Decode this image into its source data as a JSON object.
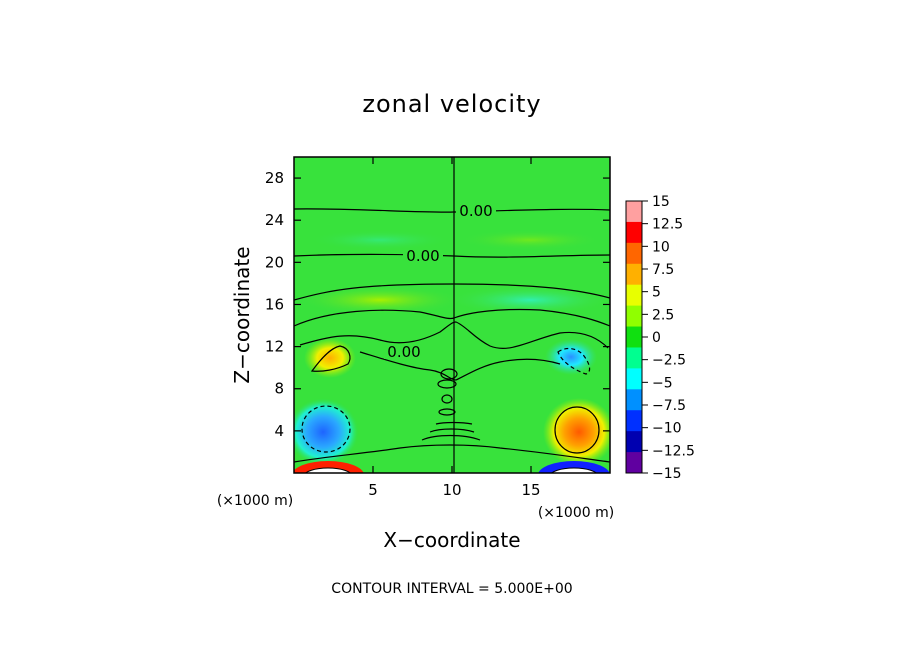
{
  "chart_data": {
    "type": "heatmap",
    "title": "zonal velocity",
    "xlabel": "X−coordinate",
    "ylabel": "Z−coordinate",
    "x_unit_left": "(×1000 m)",
    "x_unit_right": "(×1000 m)",
    "xlim": [
      0,
      20
    ],
    "ylim": [
      0,
      30
    ],
    "x_ticks": [
      5,
      10,
      15
    ],
    "y_ticks": [
      4,
      8,
      12,
      16,
      20,
      24,
      28
    ],
    "x_tick_labels": [
      "5",
      "10",
      "15"
    ],
    "y_tick_labels": [
      "4",
      "8",
      "12",
      "16",
      "20",
      "24",
      "28"
    ],
    "contour_labels": [
      {
        "text": "0.00",
        "x": 11.3,
        "z": 24.4
      },
      {
        "text": "0.00",
        "x": 8.7,
        "z": 20.1
      },
      {
        "text": "0.00",
        "x": 7.0,
        "z": 11.6
      }
    ],
    "footer": "CONTOUR INTERVAL = 5.000E+00",
    "colorbar": {
      "min": -15,
      "max": 15,
      "labels": [
        "15",
        "12.5",
        "10",
        "7.5",
        "5",
        "2.5",
        "0",
        "−2.5",
        "−5",
        "−7.5",
        "−10",
        "−12.5",
        "−15"
      ],
      "colors": [
        "#ffa0a0",
        "#ff0000",
        "#ff6600",
        "#ffb000",
        "#e8ff00",
        "#90ff00",
        "#10e010",
        "#00ff90",
        "#00ffff",
        "#0090ff",
        "#0030ff",
        "#0000b0",
        "#6000a0"
      ]
    },
    "features": [
      {
        "name": "left-low-vortex",
        "x": 1.7,
        "z": 4.2,
        "value": -7.5
      },
      {
        "name": "right-low-vortex",
        "x": 18.2,
        "z": 4.0,
        "value": 7.5
      },
      {
        "name": "left-mid-vortex",
        "x": 2.3,
        "z": 11.0,
        "value": 5
      },
      {
        "name": "right-mid-vortex",
        "x": 17.4,
        "z": 11.3,
        "value": -5
      },
      {
        "name": "bottom-left-core",
        "x": 2.6,
        "z": 0.6,
        "value": 15
      },
      {
        "name": "bottom-right-core",
        "x": 17.6,
        "z": 0.6,
        "value": -15
      }
    ]
  }
}
